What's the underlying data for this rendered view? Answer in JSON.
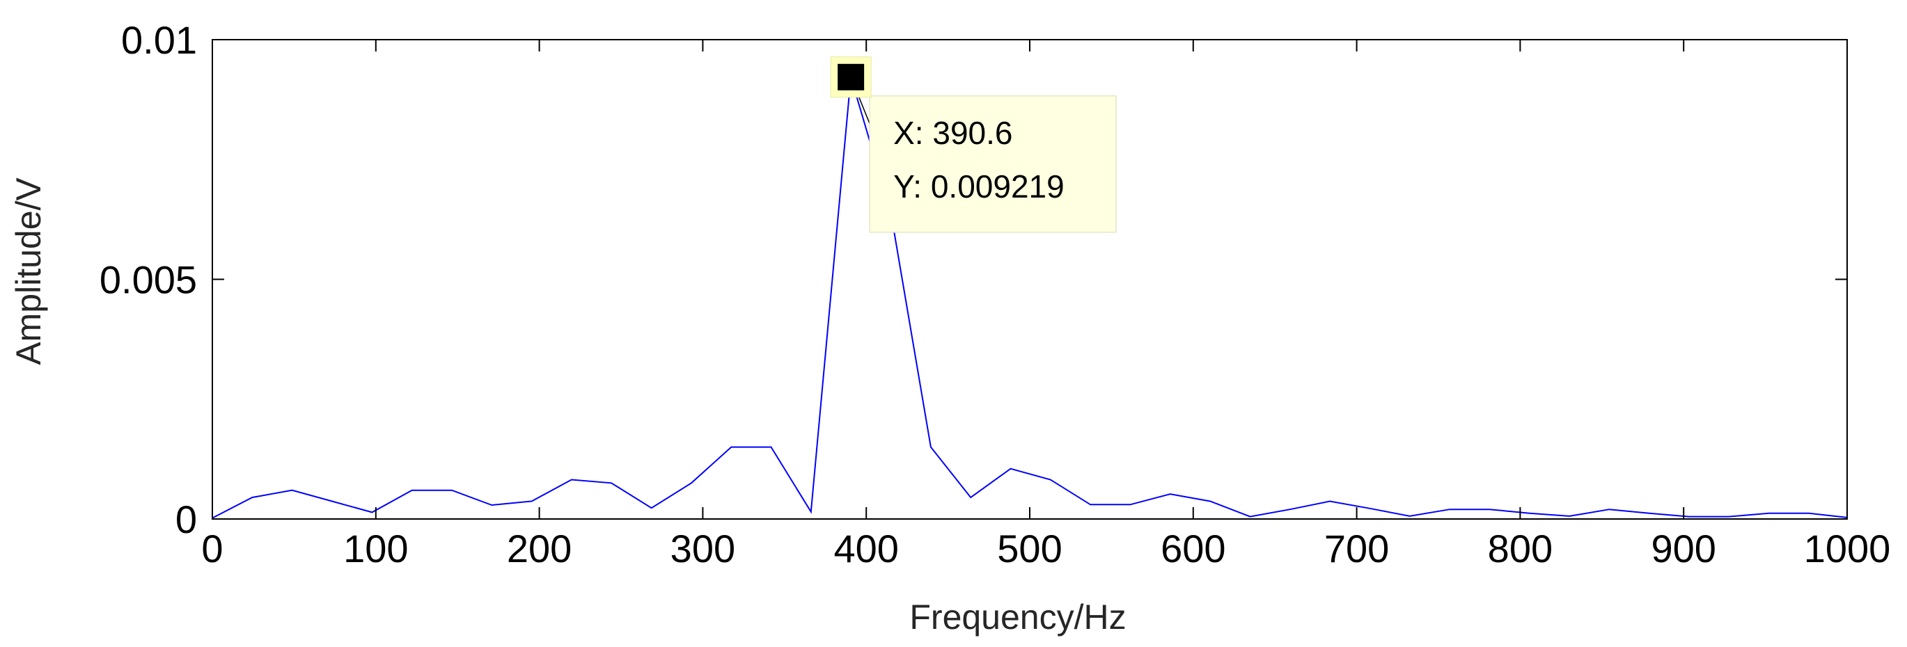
{
  "chart_data": {
    "type": "line",
    "title": "",
    "xlabel": "Frequency/Hz",
    "ylabel": "Amplitude/V",
    "xlim": [
      0,
      1000
    ],
    "ylim": [
      0,
      0.01
    ],
    "grid": false,
    "x_ticks": [
      "0",
      "100",
      "200",
      "300",
      "400",
      "500",
      "600",
      "700",
      "800",
      "900",
      "1000"
    ],
    "y_ticks": [
      "0",
      "0.005",
      "0.01"
    ],
    "series": [
      {
        "color": "#0000ff",
        "x": [
          0,
          24.4,
          48.8,
          73.2,
          97.7,
          122.1,
          146.5,
          170.9,
          195.3,
          219.7,
          244.1,
          268.6,
          293.0,
          317.4,
          341.8,
          366.2,
          390.6,
          415.0,
          439.5,
          463.9,
          488.3,
          512.7,
          537.1,
          561.5,
          585.9,
          610.4,
          634.8,
          659.2,
          683.6,
          708.0,
          732.4,
          756.8,
          781.3,
          805.7,
          830.1,
          854.5,
          878.9,
          903.3,
          927.7,
          952.1,
          976.6,
          1000
        ],
        "y": [
          2e-05,
          0.00045,
          0.0006,
          0.00037,
          0.00014,
          0.0006,
          0.0006,
          0.00029,
          0.00037,
          0.00082,
          0.00075,
          0.00023,
          0.00075,
          0.0015,
          0.0015,
          0.00015,
          0.009219,
          0.0064,
          0.0015,
          0.00045,
          0.00105,
          0.00082,
          0.0003,
          0.0003,
          0.00052,
          0.00037,
          5e-05,
          0.0002,
          0.00037,
          0.00022,
          6e-05,
          0.0002,
          0.0002,
          0.00012,
          6e-05,
          0.0002,
          0.00012,
          5e-05,
          5e-05,
          0.00012,
          0.00012,
          3e-05
        ]
      }
    ],
    "annotations": [
      {
        "x": 390.6,
        "y": 0.009219,
        "x_text": "X: 390.6",
        "y_text": "Y: 0.009219"
      }
    ]
  }
}
